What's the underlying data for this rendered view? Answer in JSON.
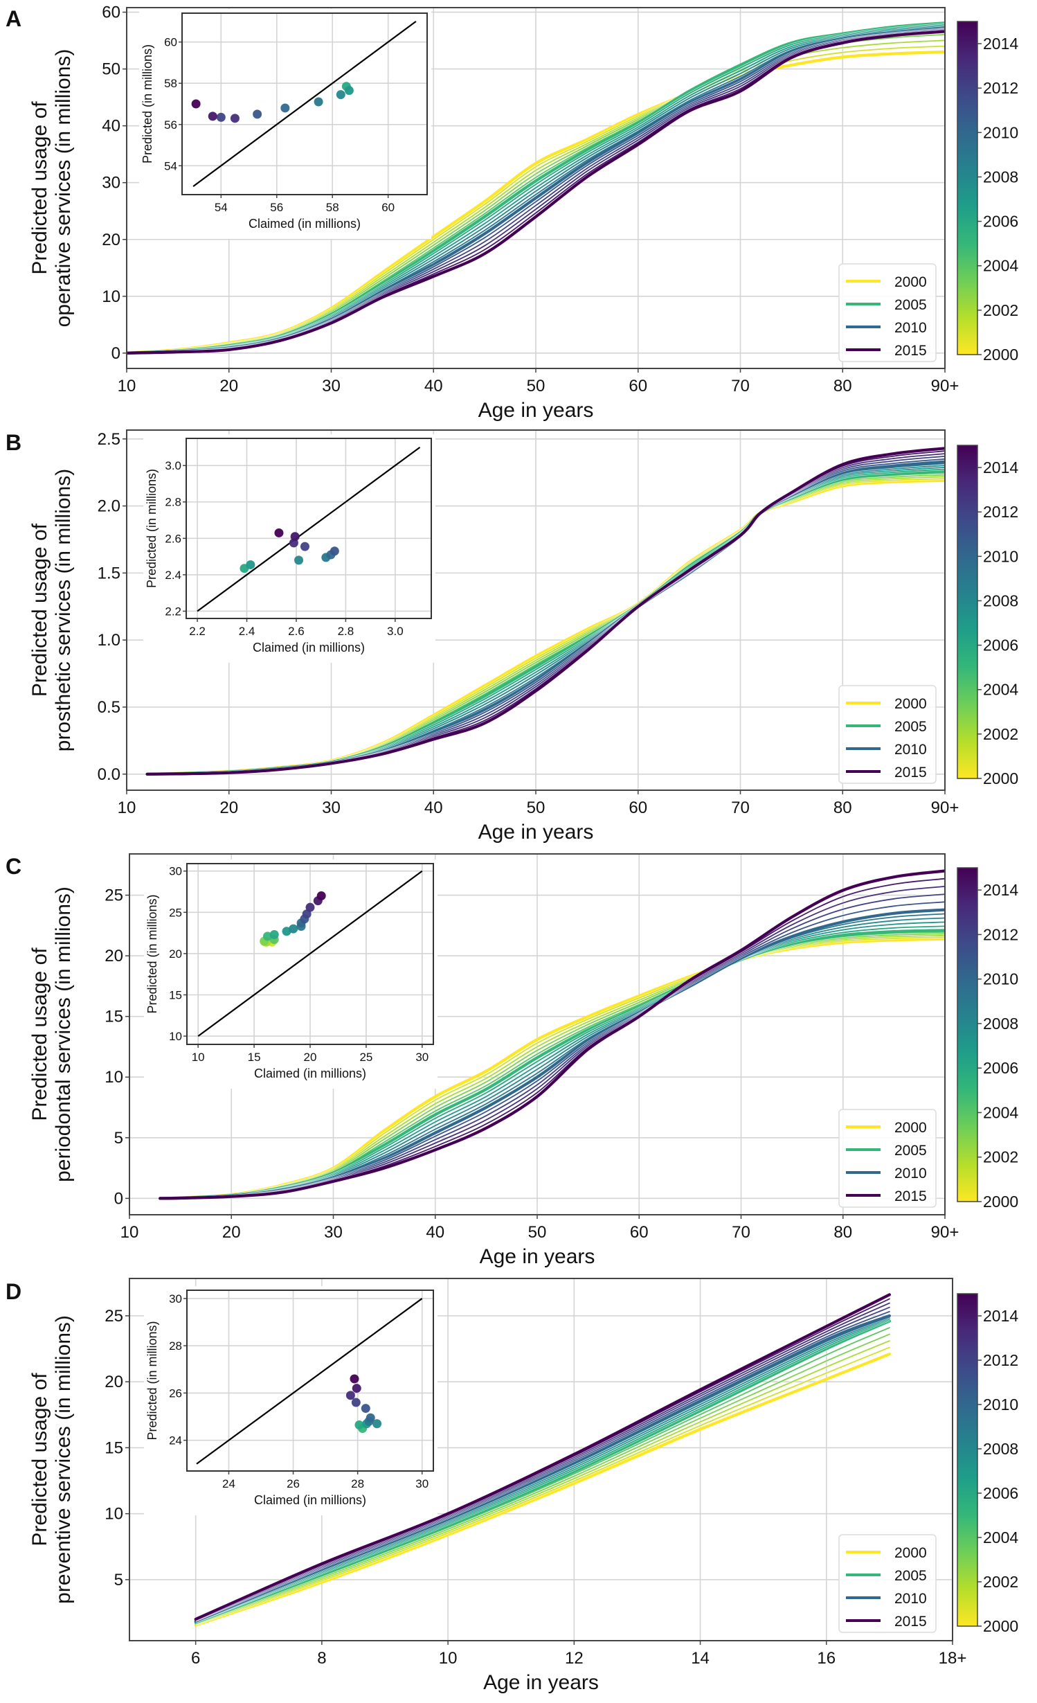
{
  "figure": {
    "colormap": "viridis",
    "colormap_stops": [
      "#fde725",
      "#b5de2b",
      "#6ece58",
      "#35b779",
      "#1f9e89",
      "#26828e",
      "#31688e",
      "#3e4989",
      "#482878",
      "#440154"
    ],
    "legend_years": [
      "2000",
      "2005",
      "2010",
      "2015"
    ],
    "colorbar_ticks": [
      "2000",
      "2002",
      "2004",
      "2006",
      "2008",
      "2010",
      "2012",
      "2014"
    ],
    "colorbar_range": [
      2000,
      2015
    ]
  },
  "chart_data": [
    {
      "panel": "A",
      "type": "line",
      "title": "",
      "xlabel": "Age in years",
      "ylabel_line1": "Predicted usage of",
      "ylabel_line2": "operative services (in millions)",
      "xlim": [
        10,
        90
      ],
      "ylim": [
        -2.7,
        60.8
      ],
      "xticks": [
        10,
        20,
        30,
        40,
        50,
        60,
        70,
        80,
        90
      ],
      "xtick_labels": [
        "10",
        "20",
        "30",
        "40",
        "50",
        "60",
        "70",
        "80",
        "90+"
      ],
      "yticks": [
        0,
        10,
        20,
        30,
        40,
        50,
        60
      ],
      "ytick_labels": [
        "0",
        "10",
        "20",
        "30",
        "40",
        "50",
        "60"
      ],
      "grid": true,
      "legend_position": "lower-right",
      "x": [
        10,
        15,
        20,
        25,
        30,
        35,
        40,
        45,
        50,
        55,
        60,
        65,
        70,
        75,
        80,
        85,
        90
      ],
      "series": [
        {
          "name": "2000",
          "values": [
            0,
            0.6,
            1.8,
            3.6,
            7.9,
            14.2,
            20.5,
            26.7,
            33.4,
            37.6,
            42.0,
            45.7,
            48.8,
            50.7,
            52.1,
            52.7,
            53.0
          ]
        },
        {
          "name": "2005",
          "values": [
            0,
            0.4,
            1.3,
            3.0,
            6.8,
            12.2,
            18.0,
            24.0,
            30.3,
            35.7,
            40.5,
            46.1,
            50.7,
            54.6,
            56.2,
            57.4,
            58.1
          ]
        },
        {
          "name": "2010",
          "values": [
            0,
            0.3,
            0.9,
            2.5,
            5.9,
            10.8,
            15.6,
            21.0,
            27.3,
            33.5,
            38.7,
            44.0,
            48.2,
            53.0,
            55.3,
            56.4,
            57.2
          ]
        },
        {
          "name": "2015",
          "values": [
            0,
            0.2,
            0.6,
            2.2,
            5.3,
            9.8,
            13.5,
            17.5,
            24.0,
            31.0,
            36.7,
            42.6,
            46.1,
            52.0,
            54.6,
            55.9,
            56.6
          ]
        }
      ],
      "inset": {
        "type": "scatter",
        "xlabel": "Claimed (in millions)",
        "ylabel": "Predicted (in millions)",
        "xlim": [
          52.6,
          61.4
        ],
        "ylim": [
          52.6,
          61.4
        ],
        "xticks": [
          "54",
          "56",
          "58",
          "60"
        ],
        "yticks": [
          "54",
          "56",
          "58",
          "60"
        ],
        "identity_line": [
          53,
          61
        ],
        "points": [
          {
            "year": 2015,
            "x": 53.1,
            "y": 57.0
          },
          {
            "year": 2014,
            "x": 53.7,
            "y": 56.4
          },
          {
            "year": 2013,
            "x": 54.5,
            "y": 56.3
          },
          {
            "year": 2012,
            "x": 54.0,
            "y": 56.35
          },
          {
            "year": 2011,
            "x": 55.3,
            "y": 56.5
          },
          {
            "year": 2010,
            "x": 56.3,
            "y": 56.8
          },
          {
            "year": 2009,
            "x": 57.5,
            "y": 57.1
          },
          {
            "year": 2008,
            "x": 58.3,
            "y": 57.45
          },
          {
            "year": 2007,
            "x": 58.6,
            "y": 57.65
          },
          {
            "year": 2006,
            "x": 58.5,
            "y": 57.85
          }
        ]
      }
    },
    {
      "panel": "B",
      "type": "line",
      "title": "",
      "xlabel": "Age in years",
      "ylabel_line1": "Predicted usage of",
      "ylabel_line2": "prosthetic services (in millions)",
      "xlim": [
        10,
        90
      ],
      "ylim": [
        -0.12,
        2.566
      ],
      "xticks": [
        10,
        20,
        30,
        40,
        50,
        60,
        70,
        80,
        90
      ],
      "xtick_labels": [
        "10",
        "20",
        "30",
        "40",
        "50",
        "60",
        "70",
        "80",
        "90+"
      ],
      "yticks": [
        0,
        0.5,
        1.0,
        1.5,
        2.0,
        2.5
      ],
      "ytick_labels": [
        "0.0",
        "0.5",
        "1.0",
        "1.5",
        "2.0",
        "2.5"
      ],
      "grid": true,
      "legend_position": "lower-right",
      "x": [
        12,
        15,
        20,
        25,
        30,
        35,
        40,
        45,
        50,
        55,
        60,
        65,
        70,
        72,
        75,
        80,
        85,
        90
      ],
      "series": [
        {
          "name": "2000",
          "values": [
            0,
            0.005,
            0.02,
            0.05,
            0.1,
            0.23,
            0.44,
            0.66,
            0.88,
            1.08,
            1.27,
            1.58,
            1.82,
            1.95,
            2.03,
            2.15,
            2.18,
            2.19
          ]
        },
        {
          "name": "2005",
          "values": [
            0,
            0.004,
            0.017,
            0.045,
            0.09,
            0.2,
            0.38,
            0.58,
            0.8,
            1.02,
            1.26,
            1.55,
            1.8,
            1.95,
            2.06,
            2.2,
            2.24,
            2.26
          ]
        },
        {
          "name": "2010",
          "values": [
            0,
            0.003,
            0.013,
            0.04,
            0.085,
            0.17,
            0.31,
            0.48,
            0.7,
            0.97,
            1.25,
            1.5,
            1.78,
            1.95,
            2.08,
            2.25,
            2.3,
            2.33
          ]
        },
        {
          "name": "2015",
          "values": [
            0,
            0.002,
            0.01,
            0.035,
            0.08,
            0.15,
            0.26,
            0.38,
            0.62,
            0.92,
            1.25,
            1.52,
            1.78,
            1.95,
            2.1,
            2.31,
            2.39,
            2.43
          ]
        }
      ],
      "inset": {
        "type": "scatter",
        "xlabel": "Claimed (in millions)",
        "ylabel": "Predicted (in millions)",
        "xlim": [
          2.155,
          3.146
        ],
        "ylim": [
          2.16,
          3.149
        ],
        "xticks": [
          "2.2",
          "2.4",
          "2.6",
          "2.8",
          "3.0"
        ],
        "yticks": [
          "2.2",
          "2.4",
          "2.6",
          "2.8",
          "3.0"
        ],
        "identity_line": [
          2.2,
          3.1
        ],
        "points": [
          {
            "year": 2015,
            "x": 2.53,
            "y": 2.63
          },
          {
            "year": 2014,
            "x": 2.595,
            "y": 2.61
          },
          {
            "year": 2013,
            "x": 2.59,
            "y": 2.575
          },
          {
            "year": 2012,
            "x": 2.635,
            "y": 2.555
          },
          {
            "year": 2011,
            "x": 2.755,
            "y": 2.53
          },
          {
            "year": 2010,
            "x": 2.74,
            "y": 2.51
          },
          {
            "year": 2009,
            "x": 2.72,
            "y": 2.495
          },
          {
            "year": 2008,
            "x": 2.61,
            "y": 2.48
          },
          {
            "year": 2007,
            "x": 2.415,
            "y": 2.455
          },
          {
            "year": 2006,
            "x": 2.39,
            "y": 2.435
          }
        ]
      }
    },
    {
      "panel": "C",
      "type": "line",
      "title": "",
      "xlabel": "Age in years",
      "ylabel_line1": "Predicted usage of",
      "ylabel_line2": "periodontal services (in millions)",
      "xlim": [
        10,
        90
      ],
      "ylim": [
        -1.35,
        28.4
      ],
      "xticks": [
        10,
        20,
        30,
        40,
        50,
        60,
        70,
        80,
        90
      ],
      "xtick_labels": [
        "10",
        "20",
        "30",
        "40",
        "50",
        "60",
        "70",
        "80",
        "90+"
      ],
      "yticks": [
        0,
        5,
        10,
        15,
        20,
        25
      ],
      "ytick_labels": [
        "0",
        "5",
        "10",
        "15",
        "20",
        "25"
      ],
      "grid": true,
      "legend_position": "lower-right",
      "x": [
        13,
        15,
        20,
        25,
        30,
        35,
        40,
        45,
        50,
        55,
        60,
        65,
        70,
        75,
        80,
        85,
        90
      ],
      "series": [
        {
          "name": "2000",
          "values": [
            0,
            0.05,
            0.3,
            1.1,
            2.5,
            5.6,
            8.4,
            10.5,
            13.1,
            15.0,
            16.7,
            18.3,
            19.7,
            20.6,
            21.1,
            21.3,
            21.4
          ]
        },
        {
          "name": "2005",
          "values": [
            0,
            0.04,
            0.25,
            0.9,
            2.1,
            4.4,
            6.9,
            9.0,
            11.6,
            13.9,
            15.8,
            17.8,
            19.7,
            21.0,
            21.7,
            22.0,
            22.1
          ]
        },
        {
          "name": "2010",
          "values": [
            0,
            0.03,
            0.2,
            0.7,
            1.7,
            3.3,
            5.4,
            7.5,
            10.0,
            13.0,
            15.3,
            17.5,
            19.8,
            21.6,
            22.8,
            23.5,
            23.8
          ]
        },
        {
          "name": "2015",
          "values": [
            0,
            0.02,
            0.15,
            0.5,
            1.4,
            2.5,
            4.0,
            5.8,
            8.4,
            12.3,
            15.0,
            18.0,
            20.45,
            23.2,
            25.4,
            26.5,
            27.0
          ]
        }
      ],
      "inset": {
        "type": "scatter",
        "xlabel": "Claimed (in millions)",
        "ylabel": "Predicted (in millions)",
        "xlim": [
          9.0,
          31.0
        ],
        "ylim": [
          9.0,
          30.9
        ],
        "xticks": [
          "10",
          "15",
          "20",
          "25",
          "30"
        ],
        "yticks": [
          "10",
          "15",
          "20",
          "25",
          "30"
        ],
        "identity_line": [
          10,
          30
        ],
        "points": [
          {
            "year": 2015,
            "x": 21.0,
            "y": 27.0
          },
          {
            "year": 2014,
            "x": 20.7,
            "y": 26.4
          },
          {
            "year": 2013,
            "x": 20.0,
            "y": 25.6
          },
          {
            "year": 2012,
            "x": 19.7,
            "y": 24.8
          },
          {
            "year": 2011,
            "x": 19.5,
            "y": 24.2
          },
          {
            "year": 2010,
            "x": 19.2,
            "y": 23.7
          },
          {
            "year": 2009,
            "x": 19.2,
            "y": 23.3
          },
          {
            "year": 2008,
            "x": 18.5,
            "y": 23.0
          },
          {
            "year": 2007,
            "x": 17.9,
            "y": 22.7
          },
          {
            "year": 2006,
            "x": 16.8,
            "y": 22.3
          },
          {
            "year": 2005,
            "x": 16.2,
            "y": 22.1
          },
          {
            "year": 2004,
            "x": 16.8,
            "y": 21.7
          },
          {
            "year": 2003,
            "x": 15.9,
            "y": 21.5
          },
          {
            "year": 2002,
            "x": 16.1,
            "y": 21.4
          },
          {
            "year": 2001,
            "x": 16.6,
            "y": 21.4
          },
          {
            "year": 2000,
            "x": 16.0,
            "y": 21.4
          }
        ]
      }
    },
    {
      "panel": "D",
      "type": "line",
      "title": "",
      "xlabel": "Age in years",
      "ylabel_line1": "Predicted usage of",
      "ylabel_line2": "preventive services (in millions)",
      "xlim": [
        4.95,
        18
      ],
      "ylim": [
        0.375,
        27.83
      ],
      "xticks": [
        6,
        8,
        10,
        12,
        14,
        16,
        18
      ],
      "xtick_labels": [
        "6",
        "8",
        "10",
        "12",
        "14",
        "16",
        "18+"
      ],
      "yticks": [
        5,
        10,
        15,
        20,
        25
      ],
      "ytick_labels": [
        "5",
        "10",
        "15",
        "20",
        "25"
      ],
      "grid": true,
      "legend_position": "lower-right",
      "x": [
        6,
        8,
        10,
        12,
        14,
        16,
        17
      ],
      "series": [
        {
          "name": "2000",
          "values": [
            1.55,
            4.8,
            8.4,
            12.3,
            16.4,
            20.2,
            22.1
          ]
        },
        {
          "name": "2005",
          "values": [
            1.75,
            5.4,
            9.1,
            13.2,
            17.8,
            22.5,
            24.6
          ]
        },
        {
          "name": "2010",
          "values": [
            1.85,
            5.8,
            9.6,
            13.9,
            18.6,
            23.2,
            25.0
          ]
        },
        {
          "name": "2015",
          "values": [
            2.0,
            6.2,
            10.0,
            14.5,
            19.4,
            24.2,
            26.6
          ]
        }
      ],
      "inset": {
        "type": "scatter",
        "xlabel": "Claimed (in millions)",
        "ylabel": "Predicted (in millions)",
        "xlim": [
          22.7,
          30.35
        ],
        "ylim": [
          22.7,
          30.35
        ],
        "xticks": [
          "24",
          "26",
          "28",
          "30"
        ],
        "yticks": [
          "24",
          "26",
          "28",
          "30"
        ],
        "identity_line": [
          23,
          30
        ],
        "points": [
          {
            "year": 2015,
            "x": 27.9,
            "y": 26.6
          },
          {
            "year": 2014,
            "x": 27.97,
            "y": 26.2
          },
          {
            "year": 2013,
            "x": 27.78,
            "y": 25.9
          },
          {
            "year": 2012,
            "x": 27.95,
            "y": 25.6
          },
          {
            "year": 2011,
            "x": 28.25,
            "y": 25.35
          },
          {
            "year": 2010,
            "x": 28.4,
            "y": 24.95
          },
          {
            "year": 2009,
            "x": 28.35,
            "y": 24.8
          },
          {
            "year": 2008,
            "x": 28.6,
            "y": 24.7
          },
          {
            "year": 2007,
            "x": 28.28,
            "y": 24.7
          },
          {
            "year": 2006,
            "x": 28.05,
            "y": 24.65
          },
          {
            "year": 2005,
            "x": 28.15,
            "y": 24.5
          }
        ]
      }
    }
  ]
}
